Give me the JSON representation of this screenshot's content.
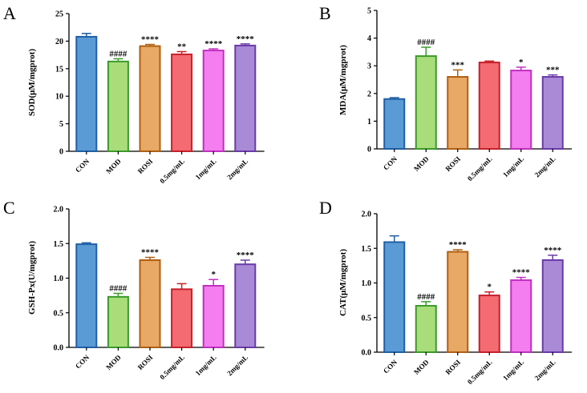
{
  "colors": {
    "CON": {
      "fill": "#5b9bd5",
      "stroke": "#1f5fa6"
    },
    "MOD": {
      "fill": "#a9dd7a",
      "stroke": "#3c9a2a"
    },
    "ROSI": {
      "fill": "#e8a866",
      "stroke": "#b06010"
    },
    "0.5mg/mL": {
      "fill": "#f46b72",
      "stroke": "#c8202a"
    },
    "1mg/mL": {
      "fill": "#f47ef0",
      "stroke": "#c030c0"
    },
    "2mg/mL": {
      "fill": "#a98ad6",
      "stroke": "#6a3aa8"
    }
  },
  "chart_data": [
    {
      "panel": "A",
      "type": "bar",
      "ylabel": "SOD(μM/mgprot)",
      "ylim": [
        0,
        25
      ],
      "yticks": [
        "0",
        "5",
        "10",
        "15",
        "20",
        "25"
      ],
      "tick_values": [
        0,
        5,
        10,
        15,
        20,
        25
      ],
      "categories": [
        "CON",
        "MOD",
        "ROSI",
        "0.5mg/mL",
        "1mg/mL",
        "2mg/mL"
      ],
      "values": [
        20.8,
        16.3,
        19.1,
        17.6,
        18.3,
        19.2
      ],
      "errors": [
        0.6,
        0.5,
        0.3,
        0.5,
        0.3,
        0.3
      ],
      "significance": [
        "",
        "####",
        "****",
        "**",
        "****",
        "****"
      ]
    },
    {
      "panel": "B",
      "type": "bar",
      "ylabel": "MDA(μM/mgprot)",
      "ylim": [
        0,
        5
      ],
      "yticks": [
        "0",
        "1",
        "2",
        "3",
        "4",
        "5"
      ],
      "tick_values": [
        0,
        1,
        2,
        3,
        4,
        5
      ],
      "categories": [
        "CON",
        "MOD",
        "ROSI",
        "0.5mg/mL",
        "1mg/mL",
        "2mg/mL"
      ],
      "values": [
        1.8,
        3.35,
        2.6,
        3.12,
        2.83,
        2.6
      ],
      "errors": [
        0.05,
        0.32,
        0.25,
        0.05,
        0.12,
        0.07
      ],
      "significance": [
        "",
        "####",
        "***",
        "",
        "*",
        "***"
      ]
    },
    {
      "panel": "C",
      "type": "bar",
      "ylabel": "GSH-Px(U/mgprot)",
      "ylim": [
        0,
        2.0
      ],
      "yticks": [
        "0.0",
        "0.5",
        "1.0",
        "1.5",
        "2.0"
      ],
      "tick_values": [
        0,
        0.5,
        1.0,
        1.5,
        2.0
      ],
      "categories": [
        "CON",
        "MOD",
        "ROSI",
        "0.5mg/mL",
        "1mg/mL",
        "2mg/mL"
      ],
      "values": [
        1.49,
        0.73,
        1.26,
        0.84,
        0.89,
        1.2
      ],
      "errors": [
        0.02,
        0.05,
        0.04,
        0.08,
        0.09,
        0.06
      ],
      "significance": [
        "",
        "####",
        "****",
        "",
        "*",
        "****"
      ]
    },
    {
      "panel": "D",
      "type": "bar",
      "ylabel": "CAT(μM/mgprot)",
      "ylim": [
        0,
        2.0
      ],
      "yticks": [
        "0.0",
        "0.5",
        "1.0",
        "1.5",
        "2.0"
      ],
      "tick_values": [
        0,
        0.5,
        1.0,
        1.5,
        2.0
      ],
      "categories": [
        "CON",
        "MOD",
        "ROSI",
        "0.5mg/mL",
        "1mg/mL",
        "2mg/mL"
      ],
      "values": [
        1.59,
        0.67,
        1.45,
        0.82,
        1.04,
        1.33
      ],
      "errors": [
        0.09,
        0.06,
        0.03,
        0.05,
        0.04,
        0.07
      ],
      "significance": [
        "",
        "####",
        "****",
        "*",
        "****",
        "****"
      ]
    }
  ]
}
